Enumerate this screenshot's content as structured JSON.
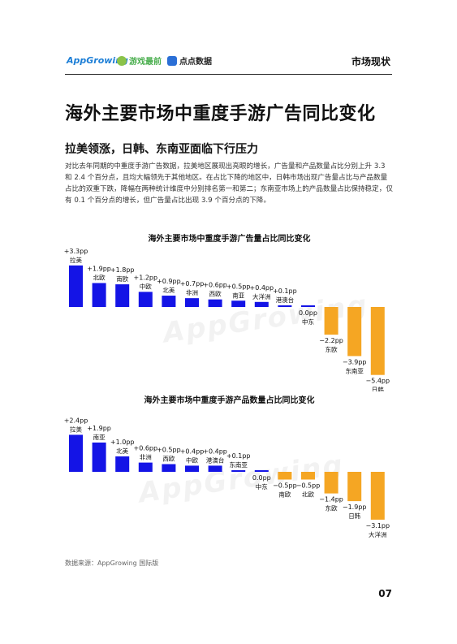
{
  "header": {
    "logos": [
      "AppGrowing",
      "游戏最前",
      "点点数据"
    ],
    "section": "市场现状"
  },
  "page_title": "海外主要市场中重度手游广告同比变化",
  "subtitle": "拉美领涨，日韩、东南亚面临下行压力",
  "body": "对比去年同期的中重度手游广告数据，拉美地区展现出亮眼的增长，广告量和产品数量占比分别上升 3.3 和 2.4 个百分点，且均大幅领先于其他地区。在占比下降的地区中，日韩市场出现广告量占比与产品数量占比的双重下跌，降幅在两种统计维度中分别排名第一和第二；东南亚市场上的产品数量占比保持稳定，仅有 0.1 个百分点的增长，但广告量占比出现 3.9 个百分点的下降。",
  "colors": {
    "positive": "#1414e6",
    "negative": "#f5a623"
  },
  "chart_data": [
    {
      "type": "bar",
      "title": "海外主要市场中重度手游广告量占比同比变化",
      "categories": [
        "拉美",
        "北欧",
        "南欧",
        "中欧",
        "北美",
        "非洲",
        "西欧",
        "南亚",
        "大洋洲",
        "港澳台",
        "中东",
        "东欧",
        "东南亚",
        "日韩"
      ],
      "values": [
        3.3,
        1.9,
        1.8,
        1.2,
        0.9,
        0.7,
        0.6,
        0.5,
        0.4,
        0.1,
        0.0,
        -2.2,
        -3.9,
        -5.4
      ],
      "value_labels": [
        "+3.3pp",
        "+1.9pp",
        "+1.8pp",
        "+1.2pp",
        "+0.9pp",
        "+0.7pp",
        "+0.6pp",
        "+0.5pp",
        "+0.4pp",
        "+0.1pp",
        "0.0pp",
        "−2.2pp",
        "−3.9pp",
        "−5.4pp"
      ],
      "unit": "pp",
      "ylim": [
        -5.4,
        3.3
      ]
    },
    {
      "type": "bar",
      "title": "海外主要市场中重度手游产品数量占比同比变化",
      "categories": [
        "拉美",
        "南亚",
        "北美",
        "非洲",
        "西欧",
        "中欧",
        "港澳台",
        "东南亚",
        "中东",
        "南欧",
        "北欧",
        "东欧",
        "日韩",
        "大洋洲"
      ],
      "values": [
        2.4,
        1.9,
        1.0,
        0.6,
        0.5,
        0.4,
        0.4,
        0.1,
        0.0,
        -0.5,
        -0.5,
        -1.4,
        -1.9,
        -3.1
      ],
      "value_labels": [
        "+2.4pp",
        "+1.9pp",
        "+1.0pp",
        "+0.6pp",
        "+0.5pp",
        "+0.4pp",
        "+0.4pp",
        "+0.1pp",
        "0.0pp",
        "−0.5pp",
        "−0.5pp",
        "−1.4pp",
        "−1.9pp",
        "−3.1pp"
      ],
      "unit": "pp",
      "ylim": [
        -3.1,
        2.4
      ]
    }
  ],
  "watermark": "AppGrowing",
  "source": "数据来源：AppGrowing 国际版",
  "page_number": "07"
}
